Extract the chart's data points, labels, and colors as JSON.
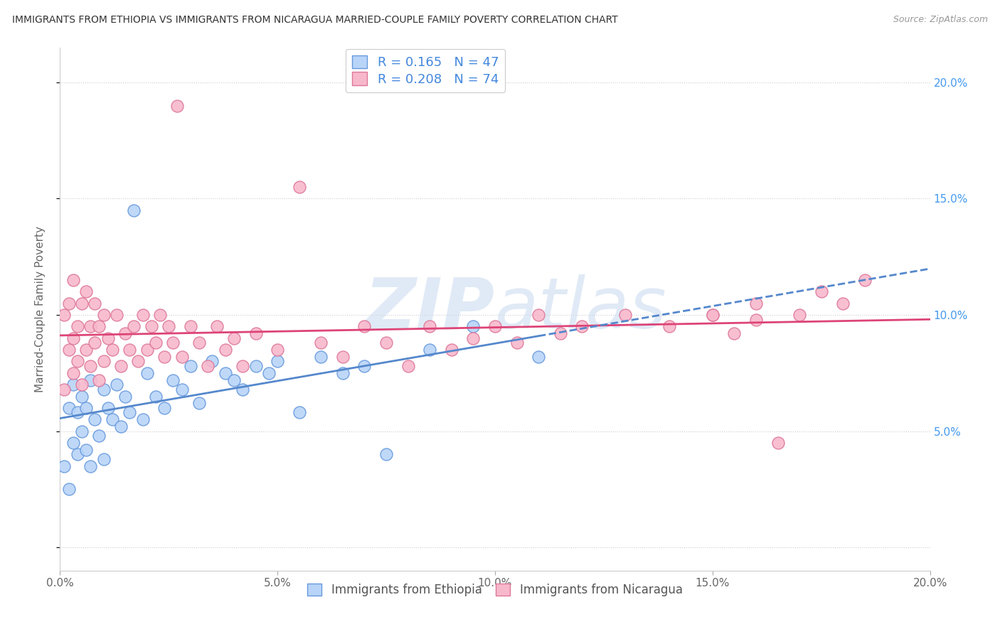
{
  "title": "IMMIGRANTS FROM ETHIOPIA VS IMMIGRANTS FROM NICARAGUA MARRIED-COUPLE FAMILY POVERTY CORRELATION CHART",
  "source": "Source: ZipAtlas.com",
  "ylabel": "Married-Couple Family Poverty",
  "xlabel_ethiopia": "Immigrants from Ethiopia",
  "xlabel_nicaragua": "Immigrants from Nicaragua",
  "xlim": [
    0.0,
    0.2
  ],
  "ylim": [
    -0.01,
    0.215
  ],
  "r_ethiopia": "0.165",
  "n_ethiopia": 47,
  "r_nicaragua": "0.208",
  "n_nicaragua": 74,
  "color_ethiopia_fill": "#b8d4f8",
  "color_ethiopia_edge": "#6699dd",
  "color_nicaragua_fill": "#f8b8cc",
  "color_nicaragua_edge": "#dd7799",
  "color_ethiopia_line": "#5588cc",
  "color_nicaragua_line": "#dd4477",
  "yticks": [
    0.0,
    0.05,
    0.1,
    0.15,
    0.2
  ],
  "ytick_labels_right": [
    "",
    "5.0%",
    "10.0%",
    "15.0%",
    "20.0%"
  ],
  "xticks": [
    0.0,
    0.05,
    0.1,
    0.15,
    0.2
  ],
  "xtick_labels": [
    "0.0%",
    "5.0%",
    "10.0%",
    "15.0%",
    "20.0%"
  ],
  "watermark": "ZIPatlas",
  "eth_x": [
    0.001,
    0.002,
    0.002,
    0.003,
    0.003,
    0.004,
    0.004,
    0.005,
    0.005,
    0.006,
    0.006,
    0.007,
    0.007,
    0.008,
    0.009,
    0.01,
    0.01,
    0.011,
    0.012,
    0.013,
    0.014,
    0.015,
    0.016,
    0.017,
    0.019,
    0.02,
    0.022,
    0.024,
    0.026,
    0.028,
    0.03,
    0.032,
    0.035,
    0.038,
    0.04,
    0.042,
    0.045,
    0.048,
    0.05,
    0.055,
    0.06,
    0.065,
    0.07,
    0.075,
    0.085,
    0.095,
    0.11
  ],
  "eth_y": [
    0.035,
    0.025,
    0.06,
    0.045,
    0.07,
    0.04,
    0.058,
    0.05,
    0.065,
    0.042,
    0.06,
    0.035,
    0.072,
    0.055,
    0.048,
    0.068,
    0.038,
    0.06,
    0.055,
    0.07,
    0.052,
    0.065,
    0.058,
    0.145,
    0.055,
    0.075,
    0.065,
    0.06,
    0.072,
    0.068,
    0.078,
    0.062,
    0.08,
    0.075,
    0.072,
    0.068,
    0.078,
    0.075,
    0.08,
    0.058,
    0.082,
    0.075,
    0.078,
    0.04,
    0.085,
    0.095,
    0.082
  ],
  "nic_x": [
    0.001,
    0.001,
    0.002,
    0.002,
    0.003,
    0.003,
    0.003,
    0.004,
    0.004,
    0.005,
    0.005,
    0.006,
    0.006,
    0.007,
    0.007,
    0.008,
    0.008,
    0.009,
    0.009,
    0.01,
    0.01,
    0.011,
    0.012,
    0.013,
    0.014,
    0.015,
    0.016,
    0.017,
    0.018,
    0.019,
    0.02,
    0.021,
    0.022,
    0.023,
    0.024,
    0.025,
    0.026,
    0.027,
    0.028,
    0.03,
    0.032,
    0.034,
    0.036,
    0.038,
    0.04,
    0.042,
    0.045,
    0.05,
    0.055,
    0.06,
    0.065,
    0.07,
    0.075,
    0.08,
    0.085,
    0.09,
    0.095,
    0.1,
    0.105,
    0.11,
    0.115,
    0.12,
    0.13,
    0.14,
    0.15,
    0.155,
    0.16,
    0.165,
    0.17,
    0.175,
    0.18,
    0.185,
    0.15,
    0.16
  ],
  "nic_y": [
    0.068,
    0.1,
    0.085,
    0.105,
    0.075,
    0.09,
    0.115,
    0.08,
    0.095,
    0.07,
    0.105,
    0.085,
    0.11,
    0.078,
    0.095,
    0.088,
    0.105,
    0.072,
    0.095,
    0.08,
    0.1,
    0.09,
    0.085,
    0.1,
    0.078,
    0.092,
    0.085,
    0.095,
    0.08,
    0.1,
    0.085,
    0.095,
    0.088,
    0.1,
    0.082,
    0.095,
    0.088,
    0.19,
    0.082,
    0.095,
    0.088,
    0.078,
    0.095,
    0.085,
    0.09,
    0.078,
    0.092,
    0.085,
    0.155,
    0.088,
    0.082,
    0.095,
    0.088,
    0.078,
    0.095,
    0.085,
    0.09,
    0.095,
    0.088,
    0.1,
    0.092,
    0.095,
    0.1,
    0.095,
    0.1,
    0.092,
    0.098,
    0.045,
    0.1,
    0.11,
    0.105,
    0.115,
    0.1,
    0.105
  ]
}
